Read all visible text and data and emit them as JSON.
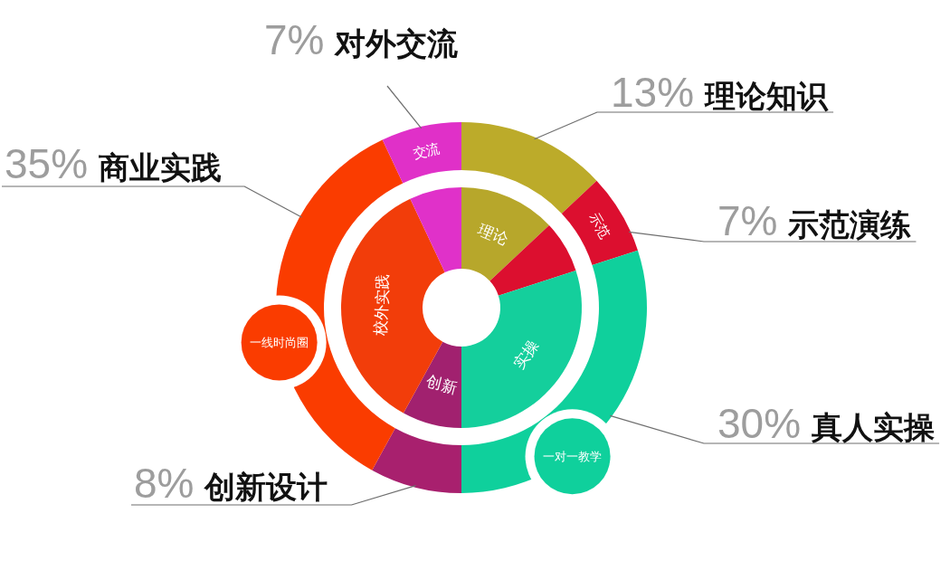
{
  "chart_data": {
    "type": "donut",
    "categories": [
      "理论知识",
      "示范演练",
      "真人实操",
      "创新设计",
      "商业实践",
      "对外交流"
    ],
    "series": [
      {
        "values": [
          13,
          7,
          30,
          8,
          35,
          7
        ],
        "colors": [
          "#b7a72b",
          "#dc0f2f",
          "#14cf9c",
          "#a1216f",
          "#f23d0a",
          "#e031c9"
        ]
      },
      {
        "values": [
          13,
          7,
          30,
          8,
          35,
          7
        ],
        "colors": [
          "#bcab2a",
          "#dc0f2f",
          "#0fd09c",
          "#a8206e",
          "#fa3c00",
          "#e030c8"
        ],
        "value_labels": [
          "13%",
          "7%",
          "30%",
          "8%",
          "35%",
          "7%"
        ]
      }
    ],
    "annotations": [
      {
        "text": "理论",
        "x": "理论知识"
      },
      {
        "text": "示范",
        "x": "示范演练"
      },
      {
        "text": "实操",
        "x": "真人实操"
      },
      {
        "text": "创新",
        "x": "创新设计"
      },
      {
        "text": "校外实践",
        "x": "商业实践"
      },
      {
        "text": "交流",
        "x": "对外交流"
      },
      {
        "text": "一线时尚圈",
        "x": "商业实践"
      },
      {
        "text": "一对一教学",
        "x": "真人实操"
      }
    ]
  }
}
